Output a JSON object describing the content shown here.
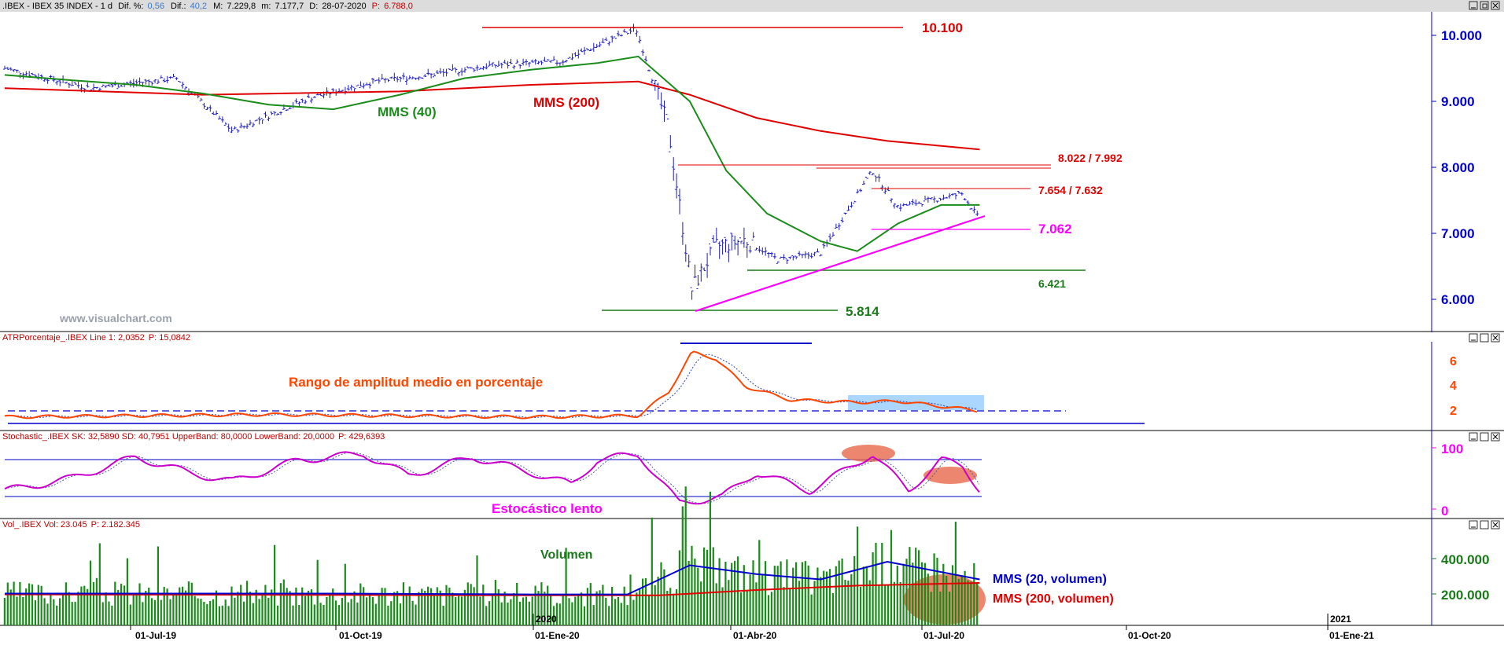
{
  "panels": {
    "price": {
      "header": ".IBEX - IBEX 35 INDEX - 1 d Dif. %: 0,56 Dif.: 40,2 M: 7.229,8 m: 7.177,7 D: 28-07-2020 P: 6.788,0",
      "header_parts": {
        "name": ".IBEX - IBEX 35 INDEX - 1 d",
        "dif_pct_label": "Dif. %:",
        "dif_pct": "0,56",
        "dif_label": "Dif.:",
        "dif": "40,2",
        "m_label": "M:",
        "m": "7.229,8",
        "mn_label": "m:",
        "mn": "7.177,7",
        "d_label": "D:",
        "d": "28-07-2020",
        "p_label": "P:",
        "p": "6.788,0"
      },
      "watermark": "www.visualchart.com",
      "annotations": {
        "peak": "10.100",
        "res1": "8.022 / 7.992",
        "res2": "7.654 / 7.632",
        "sup1": "7.062",
        "sup2": "6.421",
        "low": "5.814",
        "mms40": "MMS (40)",
        "mms200": "MMS (200)"
      },
      "yticks": [
        "10.000",
        "9.000",
        "8.000",
        "7.000",
        "6.000"
      ]
    },
    "atr": {
      "header_name": "ATRPorcentaje_.IBEX Line 1: 2,0352",
      "header_p": "P: 15,0842",
      "title": "Rango de amplitud medio en porcentaje",
      "yticks": [
        "6",
        "4",
        "2"
      ]
    },
    "stoch": {
      "header_name": "Stochastic_.IBEX SK: 32,5890 SD: 40,7951 UpperBand: 80,0000 LowerBand: 20,0000",
      "header_p": "P: 429,6393",
      "title": "Estocástico lento",
      "yticks": [
        "100",
        "0"
      ]
    },
    "vol": {
      "header_name": "Vol_.IBEX Vol: 23.045",
      "header_p": "P: 2.182.345",
      "title": "Volumen",
      "ma20": "MMS (20, volumen)",
      "ma200": "MMS (200, volumen)",
      "yticks": [
        "400.000",
        "200.000"
      ]
    }
  },
  "xaxis": {
    "labels": [
      "01-Jul-19",
      "01-Oct-19",
      "01-Ene-20",
      "01-Abr-20",
      "01-Jul-20",
      "01-Oct-20",
      "01-Ene-21"
    ],
    "year_labels": [
      "2020",
      "2021"
    ]
  },
  "colors": {
    "price_bars": "#1c1cbf",
    "ma40": "#1a8c1a",
    "ma200": "#e00000",
    "support_magenta": "#ff00ff",
    "support_green": "#1a7a1a",
    "axis_blue": "#0000cc",
    "atr_line": "#ff4500",
    "stoch_line": "#cc00cc",
    "volume_bars": "#1a8c1a",
    "header_red": "#c00000",
    "header_blue": "#3a7acc"
  },
  "chart_data": [
    {
      "type": "line",
      "panel": "price",
      "subtype": "ohlc",
      "series": [
        {
          "name": "MMS (40)",
          "x": [
            "2019-05-01",
            "2019-06-01",
            "2019-07-01",
            "2019-08-01",
            "2019-09-01",
            "2019-10-01",
            "2019-11-01",
            "2019-12-01",
            "2020-01-01",
            "2020-02-01",
            "2020-02-20",
            "2020-03-15",
            "2020-04-01",
            "2020-04-20",
            "2020-05-15",
            "2020-06-01",
            "2020-06-20",
            "2020-07-10",
            "2020-07-28"
          ],
          "y": [
            9400,
            9320,
            9250,
            9120,
            8950,
            8880,
            9100,
            9350,
            9480,
            9580,
            9680,
            9000,
            7950,
            7300,
            6880,
            6730,
            7150,
            7430,
            7430
          ]
        },
        {
          "name": "MMS (200)",
          "x": [
            "2019-05-01",
            "2019-08-01",
            "2019-11-01",
            "2020-01-01",
            "2020-02-20",
            "2020-03-15",
            "2020-04-15",
            "2020-05-15",
            "2020-06-15",
            "2020-07-28"
          ],
          "y": [
            9200,
            9100,
            9150,
            9250,
            9300,
            9100,
            8750,
            8550,
            8400,
            8270
          ]
        }
      ],
      "close": {
        "x": [
          "2019-05-01",
          "2019-06-10",
          "2019-07-20",
          "2019-08-15",
          "2019-09-20",
          "2019-10-20",
          "2019-11-15",
          "2019-12-15",
          "2020-01-15",
          "2020-02-19",
          "2020-03-05",
          "2020-03-16",
          "2020-03-27",
          "2020-04-10",
          "2020-04-25",
          "2020-05-15",
          "2020-06-08",
          "2020-06-20",
          "2020-07-05",
          "2020-07-20",
          "2020-07-28"
        ],
        "y": [
          9500,
          9200,
          9350,
          8550,
          9050,
          9300,
          9400,
          9550,
          9600,
          10100,
          8600,
          6150,
          6800,
          6900,
          6600,
          6700,
          7950,
          7400,
          7500,
          7600,
          7200
        ]
      },
      "horizontal_levels": {
        "peak": 10100,
        "res1_high": 8022,
        "res1_low": 7992,
        "res2_high": 7654,
        "res2_low": 7632,
        "sup1": 7062,
        "sup2": 6421,
        "low": 5814
      },
      "ylim": [
        5600,
        10300
      ]
    },
    {
      "type": "line",
      "panel": "atr",
      "x": [
        "2019-05-01",
        "2019-09-01",
        "2020-01-01",
        "2020-02-20",
        "2020-03-05",
        "2020-03-16",
        "2020-03-27",
        "2020-04-10",
        "2020-05-01",
        "2020-06-01",
        "2020-06-20",
        "2020-07-28"
      ],
      "values": [
        1.5,
        1.7,
        1.5,
        1.6,
        3.5,
        6.8,
        6.3,
        4.0,
        2.9,
        2.7,
        2.8,
        2.0
      ],
      "reference_line": 2.0,
      "ylim": [
        1,
        7
      ]
    },
    {
      "type": "line",
      "panel": "stoch",
      "series": [
        {
          "name": "SK",
          "x": [
            "2019-05-01",
            "2019-06-01",
            "2019-07-01",
            "2019-07-25",
            "2019-08-15",
            "2019-09-15",
            "2019-10-15",
            "2019-11-05",
            "2019-12-05",
            "2020-01-01",
            "2020-01-20",
            "2020-02-01",
            "2020-02-20",
            "2020-03-10",
            "2020-03-30",
            "2020-04-15",
            "2020-05-10",
            "2020-06-08",
            "2020-06-25",
            "2020-07-10",
            "2020-07-20",
            "2020-07-28"
          ],
          "y": [
            30,
            50,
            85,
            60,
            45,
            80,
            90,
            55,
            85,
            60,
            40,
            80,
            90,
            10,
            20,
            60,
            30,
            90,
            30,
            80,
            70,
            32
          ]
        }
      ],
      "bands": [
        80,
        20
      ],
      "ylim": [
        0,
        100
      ]
    },
    {
      "type": "bar",
      "panel": "vol",
      "series": [
        {
          "name": "MMS (20, volumen)",
          "x": [
            "2019-05-01",
            "2019-10-01",
            "2020-01-01",
            "2020-02-15",
            "2020-03-15",
            "2020-04-15",
            "2020-05-15",
            "2020-06-15",
            "2020-07-28"
          ],
          "y": [
            180000,
            180000,
            175000,
            175000,
            340000,
            290000,
            260000,
            360000,
            260000
          ]
        },
        {
          "name": "MMS (200, volumen)",
          "x": [
            "2019-05-01",
            "2020-01-01",
            "2020-03-01",
            "2020-04-15",
            "2020-06-01",
            "2020-07-28"
          ],
          "y": [
            175000,
            170000,
            170000,
            200000,
            225000,
            240000
          ]
        }
      ],
      "ylim": [
        0,
        550000
      ]
    }
  ]
}
